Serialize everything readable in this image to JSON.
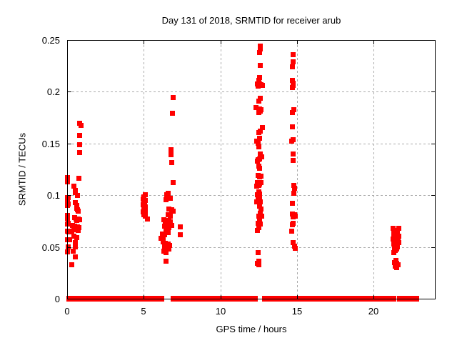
{
  "chart_data": {
    "type": "scatter",
    "title": "Day 131 of 2018, SRMTID for receiver arub",
    "xlabel": "GPS time / hours",
    "ylabel": "SRMTID / TECUs",
    "xlim": [
      0,
      24
    ],
    "ylim": [
      0,
      0.25
    ],
    "grid": true,
    "legend": "none",
    "marker": "plus",
    "marker_color": "#ff0000",
    "grid_color": "#ababab",
    "border_color": "#000000",
    "xticks": {
      "values": [
        0,
        5,
        10,
        15,
        20
      ],
      "labels": [
        "0",
        "5",
        "10",
        "15",
        "20"
      ]
    },
    "yticks": {
      "values": [
        0,
        0.05,
        0.1,
        0.15,
        0.2,
        0.25
      ],
      "labels": [
        "0",
        "0.05",
        "0.1",
        "0.15",
        "0.2",
        "0.25"
      ]
    },
    "zero_line_segments": [
      [
        0.1,
        0.62
      ],
      [
        0.85,
        5.07
      ],
      [
        5.25,
        6.2
      ],
      [
        6.9,
        7.9
      ],
      [
        8.05,
        12.28
      ],
      [
        12.84,
        14.6
      ],
      [
        14.85,
        17.56
      ],
      [
        17.67,
        21.35
      ],
      [
        21.67,
        22.84
      ]
    ],
    "series": [
      {
        "name": "SRMTID",
        "points": [
          [
            0.8,
            0.17
          ],
          [
            0.88,
            0.168
          ],
          [
            0.8,
            0.158
          ],
          [
            0.78,
            0.149
          ],
          [
            0.8,
            0.1415
          ],
          [
            0.0,
            0.1175
          ],
          [
            0.0,
            0.1135
          ],
          [
            0.76,
            0.117
          ],
          [
            0.43,
            0.109
          ],
          [
            0.5,
            0.1052
          ],
          [
            0.53,
            0.1029
          ],
          [
            0.65,
            0.0999
          ],
          [
            0.0,
            0.0983
          ],
          [
            0.06,
            0.0979
          ],
          [
            0.0,
            0.0937
          ],
          [
            0.06,
            0.0916
          ],
          [
            0.0,
            0.0907
          ],
          [
            0.5,
            0.093
          ],
          [
            0.59,
            0.0903
          ],
          [
            0.6,
            0.0879
          ],
          [
            0.65,
            0.0861
          ],
          [
            0.71,
            0.0851
          ],
          [
            0.0,
            0.081
          ],
          [
            0.0,
            0.0782
          ],
          [
            0.47,
            0.0787
          ],
          [
            0.57,
            0.0776
          ],
          [
            0.71,
            0.0773
          ],
          [
            0.81,
            0.0764
          ],
          [
            0.62,
            0.0757
          ],
          [
            0.0,
            0.0723
          ],
          [
            0.05,
            0.073
          ],
          [
            0.34,
            0.0711
          ],
          [
            0.45,
            0.0706
          ],
          [
            0.55,
            0.07
          ],
          [
            0.65,
            0.0695
          ],
          [
            0.75,
            0.069
          ],
          [
            0.4,
            0.0683
          ],
          [
            0.52,
            0.0676
          ],
          [
            0.62,
            0.067
          ],
          [
            0.72,
            0.0663
          ],
          [
            0.0,
            0.0654
          ],
          [
            0.04,
            0.0651
          ],
          [
            0.19,
            0.0654
          ],
          [
            0.28,
            0.0647
          ],
          [
            0.43,
            0.0606
          ],
          [
            0.59,
            0.0594
          ],
          [
            0.0,
            0.0571
          ],
          [
            0.13,
            0.0571
          ],
          [
            0.51,
            0.0548
          ],
          [
            0.03,
            0.0502
          ],
          [
            0.5,
            0.0506
          ],
          [
            0.0,
            0.0456
          ],
          [
            0.36,
            0.046
          ],
          [
            0.51,
            0.041
          ],
          [
            0.28,
            0.0329
          ],
          [
            5.06,
            0.1008
          ],
          [
            5.0,
            0.0988
          ],
          [
            4.95,
            0.0966
          ],
          [
            5.08,
            0.0955
          ],
          [
            5.0,
            0.094
          ],
          [
            5.04,
            0.0926
          ],
          [
            4.93,
            0.0912
          ],
          [
            5.02,
            0.0899
          ],
          [
            5.1,
            0.089
          ],
          [
            4.97,
            0.0881
          ],
          [
            5.05,
            0.0871
          ],
          [
            5.0,
            0.0861
          ],
          [
            5.08,
            0.0852
          ],
          [
            4.95,
            0.0841
          ],
          [
            5.03,
            0.0829
          ],
          [
            5.0,
            0.0815
          ],
          [
            5.1,
            0.0801
          ],
          [
            5.2,
            0.0775
          ],
          [
            6.9,
            0.1947
          ],
          [
            6.84,
            0.1797
          ],
          [
            6.76,
            0.1441
          ],
          [
            6.76,
            0.1394
          ],
          [
            6.8,
            0.1321
          ],
          [
            6.88,
            0.1126
          ],
          [
            6.57,
            0.1022
          ],
          [
            6.49,
            0.101
          ],
          [
            6.73,
            0.0971
          ],
          [
            6.42,
            0.0958
          ],
          [
            6.62,
            0.0872
          ],
          [
            6.8,
            0.0861
          ],
          [
            6.88,
            0.0849
          ],
          [
            6.57,
            0.0815
          ],
          [
            6.73,
            0.0803
          ],
          [
            6.3,
            0.0769
          ],
          [
            6.45,
            0.0762
          ],
          [
            6.6,
            0.0755
          ],
          [
            6.72,
            0.0748
          ],
          [
            6.38,
            0.0738
          ],
          [
            6.52,
            0.073
          ],
          [
            6.66,
            0.0722
          ],
          [
            6.8,
            0.0714
          ],
          [
            6.35,
            0.0705
          ],
          [
            6.5,
            0.0697
          ],
          [
            6.63,
            0.0688
          ],
          [
            6.42,
            0.066
          ],
          [
            6.55,
            0.0645
          ],
          [
            7.35,
            0.07
          ],
          [
            6.21,
            0.0626
          ],
          [
            6.34,
            0.0619
          ],
          [
            7.35,
            0.0619
          ],
          [
            6.11,
            0.0585
          ],
          [
            6.26,
            0.0573
          ],
          [
            6.25,
            0.055
          ],
          [
            6.4,
            0.054
          ],
          [
            6.55,
            0.053
          ],
          [
            6.68,
            0.052
          ],
          [
            6.33,
            0.0508
          ],
          [
            6.48,
            0.0496
          ],
          [
            6.62,
            0.0483
          ],
          [
            6.3,
            0.0462
          ],
          [
            6.45,
            0.0447
          ],
          [
            6.42,
            0.0366
          ],
          [
            12.58,
            0.2445
          ],
          [
            12.58,
            0.2415
          ],
          [
            12.55,
            0.2385
          ],
          [
            12.6,
            0.2261
          ],
          [
            12.55,
            0.2139
          ],
          [
            12.48,
            0.2111
          ],
          [
            12.4,
            0.2081
          ],
          [
            12.55,
            0.2081
          ],
          [
            12.63,
            0.207
          ],
          [
            12.44,
            0.2056
          ],
          [
            12.71,
            0.2063
          ],
          [
            12.6,
            0.1938
          ],
          [
            12.51,
            0.1913
          ],
          [
            12.32,
            0.1851
          ],
          [
            12.55,
            0.1839
          ],
          [
            12.63,
            0.1828
          ],
          [
            12.6,
            0.1816
          ],
          [
            12.48,
            0.1804
          ],
          [
            12.71,
            0.1655
          ],
          [
            12.6,
            0.1621
          ],
          [
            12.51,
            0.1609
          ],
          [
            12.55,
            0.1551
          ],
          [
            12.35,
            0.1528
          ],
          [
            12.44,
            0.1505
          ],
          [
            12.51,
            0.1471
          ],
          [
            12.6,
            0.1402
          ],
          [
            12.66,
            0.1374
          ],
          [
            12.55,
            0.1355
          ],
          [
            12.44,
            0.1344
          ],
          [
            12.4,
            0.1333
          ],
          [
            12.48,
            0.1287
          ],
          [
            12.55,
            0.1264
          ],
          [
            12.44,
            0.1195
          ],
          [
            12.55,
            0.1183
          ],
          [
            12.63,
            0.119
          ],
          [
            12.4,
            0.1126
          ],
          [
            12.63,
            0.1126
          ],
          [
            12.55,
            0.1114
          ],
          [
            12.48,
            0.1098
          ],
          [
            12.35,
            0.1091
          ],
          [
            12.51,
            0.1034
          ],
          [
            12.55,
            0.1015
          ],
          [
            12.4,
            0.101
          ],
          [
            12.55,
            0.0969
          ],
          [
            12.44,
            0.096
          ],
          [
            12.35,
            0.0941
          ],
          [
            12.6,
            0.0937
          ],
          [
            12.55,
            0.0896
          ],
          [
            12.63,
            0.0872
          ],
          [
            12.6,
            0.0826
          ],
          [
            12.66,
            0.0803
          ],
          [
            12.51,
            0.0799
          ],
          [
            12.55,
            0.0753
          ],
          [
            12.44,
            0.0734
          ],
          [
            12.6,
            0.0723
          ],
          [
            12.51,
            0.0688
          ],
          [
            12.4,
            0.0665
          ],
          [
            12.44,
            0.0447
          ],
          [
            12.51,
            0.0366
          ],
          [
            12.4,
            0.0343
          ],
          [
            12.48,
            0.0331
          ],
          [
            14.73,
            0.2362
          ],
          [
            14.73,
            0.2293
          ],
          [
            14.7,
            0.2242
          ],
          [
            14.68,
            0.2115
          ],
          [
            14.73,
            0.2086
          ],
          [
            14.73,
            0.2063
          ],
          [
            14.68,
            0.2046
          ],
          [
            14.77,
            0.1832
          ],
          [
            14.68,
            0.1804
          ],
          [
            14.68,
            0.1666
          ],
          [
            14.73,
            0.154
          ],
          [
            14.65,
            0.1524
          ],
          [
            14.73,
            0.1402
          ],
          [
            14.73,
            0.134
          ],
          [
            14.77,
            0.1096
          ],
          [
            14.83,
            0.1073
          ],
          [
            14.77,
            0.1022
          ],
          [
            14.68,
            0.0925
          ],
          [
            14.7,
            0.082
          ],
          [
            14.81,
            0.0815
          ],
          [
            14.88,
            0.0803
          ],
          [
            14.73,
            0.0792
          ],
          [
            14.76,
            0.081
          ],
          [
            14.73,
            0.0734
          ],
          [
            14.68,
            0.0718
          ],
          [
            14.65,
            0.0654
          ],
          [
            14.73,
            0.0543
          ],
          [
            14.83,
            0.0511
          ],
          [
            14.88,
            0.0492
          ],
          [
            21.25,
            0.0681
          ],
          [
            21.64,
            0.0681
          ],
          [
            21.3,
            0.066
          ],
          [
            21.45,
            0.0655
          ],
          [
            21.35,
            0.064
          ],
          [
            21.55,
            0.0635
          ],
          [
            21.28,
            0.062
          ],
          [
            21.42,
            0.0615
          ],
          [
            21.6,
            0.061
          ],
          [
            21.33,
            0.0598
          ],
          [
            21.5,
            0.0592
          ],
          [
            21.27,
            0.058
          ],
          [
            21.44,
            0.0574
          ],
          [
            21.58,
            0.0568
          ],
          [
            21.35,
            0.0556
          ],
          [
            21.48,
            0.055
          ],
          [
            21.62,
            0.0545
          ],
          [
            21.3,
            0.0532
          ],
          [
            21.46,
            0.0526
          ],
          [
            21.38,
            0.0512
          ],
          [
            21.55,
            0.0506
          ],
          [
            21.33,
            0.0492
          ],
          [
            21.5,
            0.0486
          ],
          [
            21.4,
            0.0468
          ],
          [
            21.3,
            0.045
          ],
          [
            21.45,
            0.0372
          ],
          [
            21.35,
            0.0355
          ],
          [
            21.5,
            0.0345
          ],
          [
            21.42,
            0.0338
          ],
          [
            21.56,
            0.0332
          ],
          [
            21.38,
            0.0318
          ],
          [
            21.48,
            0.0302
          ]
        ]
      }
    ]
  }
}
